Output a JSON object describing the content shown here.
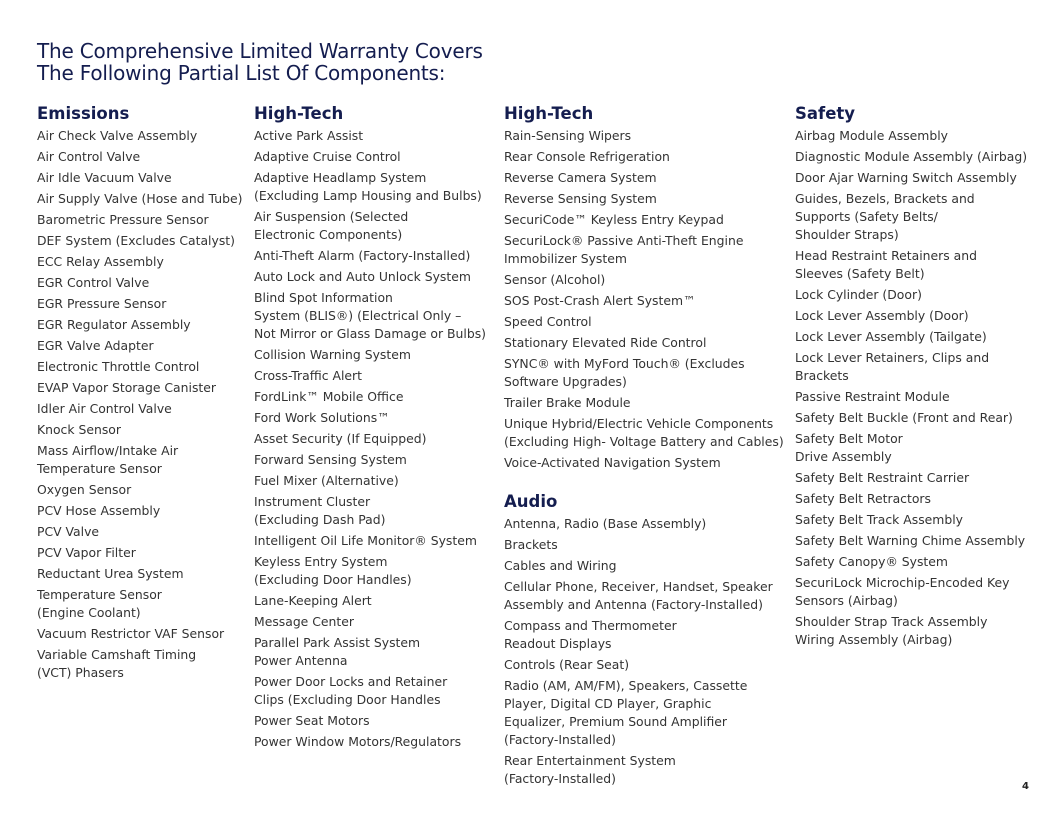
{
  "title": "The Comprehensive Limited Warranty Covers\nThe Following Partial List Of Components:",
  "page_number": "4",
  "columns": [
    {
      "sections": [
        {
          "heading": "Emissions",
          "items": [
            "Air Check Valve Assembly",
            "Air Control Valve",
            "Air Idle Vacuum Valve",
            "Air Supply Valve (Hose and Tube)",
            "Barometric Pressure Sensor",
            "DEF System (Excludes Catalyst)",
            "ECC Relay Assembly",
            "EGR Control Valve",
            "EGR Pressure Sensor",
            "EGR Regulator Assembly",
            "EGR Valve Adapter",
            "Electronic Throttle Control",
            "EVAP Vapor Storage Canister",
            "Idler Air Control Valve",
            "Knock Sensor",
            "Mass Airflow/Intake Air\nTemperature Sensor",
            "Oxygen Sensor",
            "PCV Hose Assembly",
            "PCV Valve",
            "PCV Vapor Filter",
            "Reductant Urea System",
            "Temperature Sensor\n(Engine Coolant)",
            "Vacuum Restrictor VAF Sensor",
            "Variable Camshaft Timing\n(VCT) Phasers"
          ]
        }
      ]
    },
    {
      "sections": [
        {
          "heading": "High-Tech",
          "items": [
            "Active Park Assist",
            "Adaptive Cruise Control",
            "Adaptive Headlamp System\n(Excluding Lamp Housing and Bulbs)",
            "Air Suspension (Selected\nElectronic Components)",
            "Anti-Theft Alarm (Factory-Installed)",
            "Auto Lock and Auto Unlock System",
            "Blind Spot Information\nSystem (BLIS®) (Electrical Only –\nNot Mirror or Glass Damage or Bulbs)",
            "Collision Warning System",
            "Cross-Traffic Alert",
            "FordLink™ Mobile Office",
            "Ford Work Solutions™",
            "Asset Security (If Equipped)",
            "Forward Sensing System",
            "Fuel Mixer (Alternative)",
            "Instrument Cluster\n(Excluding Dash Pad)",
            "Intelligent Oil Life Monitor® System",
            "Keyless Entry System\n(Excluding Door Handles)",
            "Lane-Keeping Alert",
            "Message Center",
            "Parallel Park Assist System\nPower Antenna",
            "Power Door Locks and Retainer\nClips (Excluding Door Handles",
            "Power Seat Motors",
            "Power Window Motors/Regulators"
          ]
        }
      ]
    },
    {
      "sections": [
        {
          "heading": "High-Tech",
          "items": [
            "Rain-Sensing Wipers",
            "Rear Console Refrigeration",
            "Reverse Camera System",
            "Reverse Sensing System",
            "SecuriCode™ Keyless Entry Keypad",
            "SecuriLock® Passive Anti-Theft Engine\nImmobilizer System",
            "Sensor (Alcohol)",
            "SOS Post-Crash Alert System™",
            "Speed Control",
            "Stationary Elevated Ride Control",
            "SYNC® with MyFord Touch® (Excludes\nSoftware Upgrades)",
            "Trailer Brake Module",
            "Unique Hybrid/Electric Vehicle Components\n(Excluding High- Voltage Battery and Cables)",
            "Voice-Activated Navigation System"
          ]
        },
        {
          "heading": "Audio",
          "items": [
            "Antenna, Radio (Base Assembly)",
            "Brackets",
            "Cables and Wiring",
            "Cellular Phone, Receiver, Handset, Speaker\nAssembly and Antenna (Factory-Installed)",
            "Compass and Thermometer\nReadout Displays",
            "Controls (Rear Seat)",
            "Radio (AM, AM/FM), Speakers, Cassette\nPlayer, Digital CD Player, Graphic\nEqualizer, Premium Sound Amplifier\n(Factory-Installed)",
            "Rear Entertainment System\n(Factory-Installed)"
          ]
        }
      ]
    },
    {
      "sections": [
        {
          "heading": "Safety",
          "items": [
            "Airbag Module Assembly",
            "Diagnostic Module Assembly (Airbag)",
            "Door Ajar Warning Switch Assembly",
            "Guides, Bezels, Brackets and\nSupports (Safety Belts/\nShoulder Straps)",
            "Head Restraint Retainers and\nSleeves (Safety Belt)",
            "Lock Cylinder (Door)",
            "Lock Lever Assembly (Door)",
            "Lock Lever Assembly (Tailgate)",
            "Lock Lever Retainers, Clips and\nBrackets",
            "Passive Restraint Module",
            "Safety Belt Buckle (Front and Rear)",
            "Safety Belt Motor\nDrive Assembly",
            "Safety Belt Restraint Carrier",
            "Safety Belt Retractors",
            "Safety Belt Track Assembly",
            "Safety Belt Warning Chime Assembly",
            "Safety Canopy® System",
            "SecuriLock Microchip-Encoded Key\nSensors (Airbag)",
            "Shoulder Strap Track Assembly\nWiring Assembly (Airbag)"
          ]
        }
      ]
    }
  ]
}
